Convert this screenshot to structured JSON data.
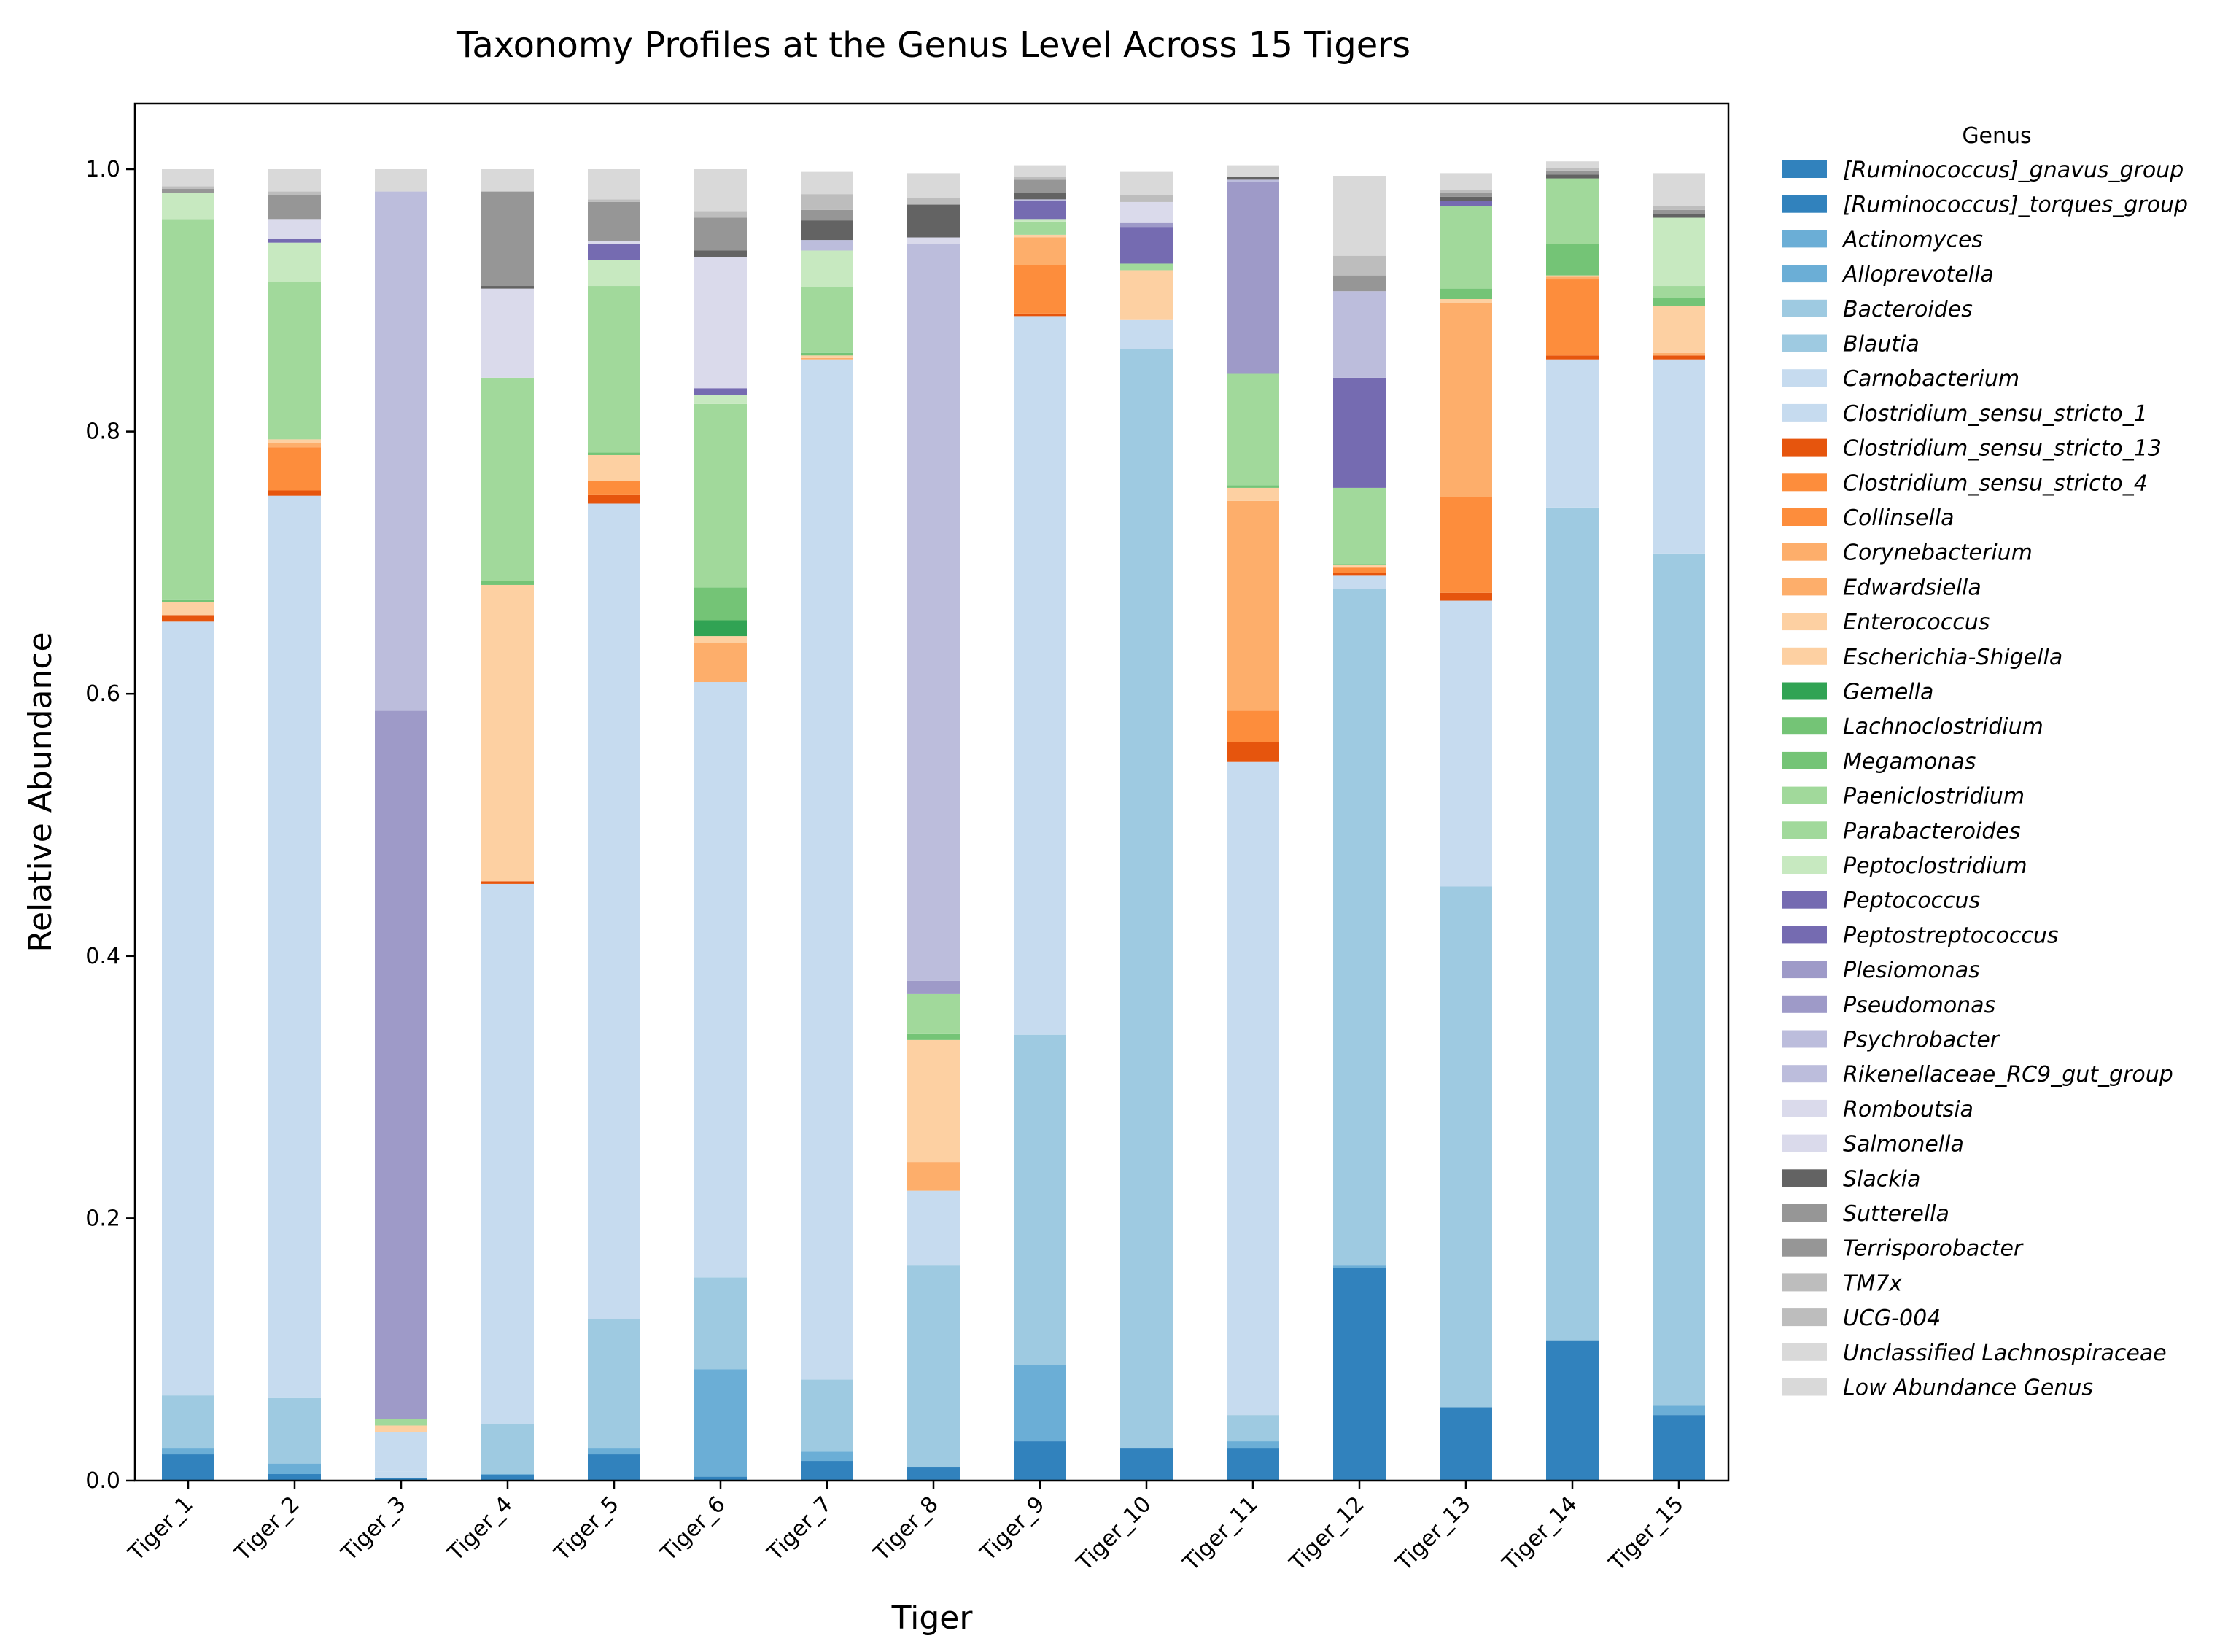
{
  "chart_data": {
    "type": "bar",
    "stacked": true,
    "title": "Taxonomy Profiles at the Genus Level Across 15 Tigers",
    "xlabel": "Tiger",
    "ylabel": "Relative Abundance",
    "ylim": [
      0,
      1.05
    ],
    "yticks": [
      0.0,
      0.2,
      0.4,
      0.6,
      0.8,
      1.0
    ],
    "ytick_labels": [
      "0.0",
      "0.2",
      "0.4",
      "0.6",
      "0.8",
      "1.0"
    ],
    "grid": false,
    "legend_title": "Genus",
    "legend_position": "outside-right",
    "categories": [
      "Tiger_1",
      "Tiger_2",
      "Tiger_3",
      "Tiger_4",
      "Tiger_5",
      "Tiger_6",
      "Tiger_7",
      "Tiger_8",
      "Tiger_9",
      "Tiger_10",
      "Tiger_11",
      "Tiger_12",
      "Tiger_13",
      "Tiger_14",
      "Tiger_15"
    ],
    "series": [
      {
        "name": "[Ruminococcus]_gnavus_group",
        "color": "#3182bd",
        "values": [
          0.02,
          0.005,
          0.002,
          0.004,
          0.02,
          0.003,
          0.015,
          0.01,
          0.03,
          0.025,
          0.025,
          0.162,
          0.056,
          0.107,
          0.05
        ]
      },
      {
        "name": "[Ruminococcus]_torques_group",
        "color": "#3182bd",
        "values": [
          0,
          0,
          0,
          0,
          0,
          0,
          0,
          0,
          0,
          0,
          0,
          0,
          0,
          0,
          0
        ]
      },
      {
        "name": "Actinomyces",
        "color": "#6baed6",
        "values": [
          0.005,
          0.008,
          0,
          0.001,
          0.005,
          0.082,
          0.007,
          0,
          0.058,
          0,
          0.005,
          0.002,
          0,
          0,
          0.007
        ]
      },
      {
        "name": "Alloprevotella",
        "color": "#6baed6",
        "values": [
          0,
          0,
          0,
          0,
          0,
          0,
          0,
          0,
          0,
          0,
          0,
          0,
          0,
          0,
          0
        ]
      },
      {
        "name": "Bacteroides",
        "color": "#9ecae1",
        "values": [
          0.04,
          0.05,
          0,
          0.038,
          0.098,
          0.07,
          0.055,
          0.154,
          0.252,
          0.838,
          0.02,
          0.516,
          0.397,
          0.635,
          0.65
        ]
      },
      {
        "name": "Blautia",
        "color": "#9ecae1",
        "values": [
          0,
          0,
          0,
          0,
          0,
          0,
          0,
          0,
          0,
          0,
          0,
          0,
          0,
          0,
          0
        ]
      },
      {
        "name": "Carnobacterium",
        "color": "#c6dbef",
        "values": [
          0,
          0,
          0.005,
          0,
          0,
          0,
          0,
          0,
          0,
          0,
          0,
          0,
          0,
          0,
          0
        ]
      },
      {
        "name": "Clostridium_sensu_stricto_1",
        "color": "#c6dbef",
        "values": [
          0.59,
          0.688,
          0.03,
          0.412,
          0.622,
          0.454,
          0.778,
          0.057,
          0.548,
          0.022,
          0.498,
          0.01,
          0.218,
          0.113,
          0.148
        ]
      },
      {
        "name": "Clostridium_sensu_stricto_13",
        "color": "#e6550d",
        "values": [
          0.005,
          0.004,
          0,
          0.002,
          0.007,
          0,
          0,
          0,
          0.002,
          0,
          0.015,
          0.002,
          0.006,
          0.003,
          0.003
        ]
      },
      {
        "name": "Clostridium_sensu_stricto_4",
        "color": "#fd8d3c",
        "values": [
          0,
          0,
          0,
          0,
          0,
          0,
          0,
          0,
          0,
          0,
          0,
          0,
          0,
          0,
          0
        ]
      },
      {
        "name": "Collinsella",
        "color": "#fd8d3c",
        "values": [
          0,
          0.033,
          0,
          0,
          0.01,
          0,
          0,
          0,
          0.037,
          0,
          0.024,
          0.004,
          0.073,
          0.058,
          0
        ]
      },
      {
        "name": "Corynebacterium",
        "color": "#fdae6b",
        "values": [
          0,
          0,
          0,
          0,
          0,
          0,
          0,
          0,
          0,
          0,
          0,
          0,
          0,
          0,
          0
        ]
      },
      {
        "name": "Edwardsiella",
        "color": "#fdae6b",
        "values": [
          0,
          0.003,
          0,
          0,
          0,
          0.03,
          0.001,
          0.022,
          0.021,
          0,
          0.16,
          0.001,
          0.148,
          0.002,
          0.002
        ]
      },
      {
        "name": "Enterococcus",
        "color": "#fdd0a2",
        "values": [
          0,
          0,
          0,
          0,
          0,
          0,
          0,
          0,
          0,
          0,
          0,
          0,
          0,
          0,
          0
        ]
      },
      {
        "name": "Escherichia-Shigella",
        "color": "#fdd0a2",
        "values": [
          0.01,
          0.003,
          0.005,
          0.226,
          0.02,
          0.005,
          0.002,
          0.093,
          0.002,
          0.038,
          0.01,
          0.001,
          0.003,
          0.001,
          0.036
        ]
      },
      {
        "name": "Gemella",
        "color": "#31a354",
        "values": [
          0,
          0,
          0,
          0,
          0,
          0.012,
          0,
          0,
          0,
          0,
          0,
          0,
          0,
          0,
          0
        ]
      },
      {
        "name": "Lachnoclostridium",
        "color": "#74c476",
        "values": [
          0,
          0,
          0,
          0,
          0,
          0,
          0,
          0,
          0,
          0,
          0,
          0,
          0,
          0,
          0
        ]
      },
      {
        "name": "Megamonas",
        "color": "#74c476",
        "values": [
          0.002,
          0,
          0,
          0.003,
          0.002,
          0.025,
          0.002,
          0.005,
          0,
          0,
          0.002,
          0.001,
          0.008,
          0.024,
          0.006
        ]
      },
      {
        "name": "Paeniclostridium",
        "color": "#a1d99b",
        "values": [
          0,
          0,
          0,
          0,
          0,
          0,
          0,
          0,
          0,
          0,
          0,
          0,
          0,
          0,
          0
        ]
      },
      {
        "name": "Parabacteroides",
        "color": "#a1d99b",
        "values": [
          0.29,
          0.12,
          0.005,
          0.155,
          0.127,
          0.14,
          0.05,
          0.03,
          0.01,
          0.005,
          0.085,
          0.058,
          0.063,
          0.05,
          0.009
        ]
      },
      {
        "name": "Peptoclostridium",
        "color": "#c7e9c0",
        "values": [
          0.02,
          0.03,
          0,
          0,
          0.02,
          0.007,
          0.028,
          0,
          0.002,
          0,
          0,
          0,
          0,
          0,
          0.052
        ]
      },
      {
        "name": "Peptococcus",
        "color": "#756bb1",
        "values": [
          0,
          0,
          0,
          0,
          0,
          0,
          0,
          0,
          0,
          0,
          0,
          0,
          0,
          0,
          0
        ]
      },
      {
        "name": "Peptostreptococcus",
        "color": "#756bb1",
        "values": [
          0,
          0.003,
          0,
          0,
          0.012,
          0.005,
          0,
          0,
          0.014,
          0.028,
          0,
          0.084,
          0.004,
          0,
          0
        ]
      },
      {
        "name": "Plesiomonas",
        "color": "#9e9ac8",
        "values": [
          0,
          0,
          0.54,
          0,
          0,
          0,
          0,
          0.01,
          0,
          0.003,
          0.146,
          0,
          0,
          0,
          0
        ]
      },
      {
        "name": "Pseudomonas",
        "color": "#9e9ac8",
        "values": [
          0,
          0,
          0,
          0,
          0,
          0,
          0,
          0,
          0,
          0,
          0,
          0,
          0,
          0,
          0
        ]
      },
      {
        "name": "Psychrobacter",
        "color": "#bcbddc",
        "values": [
          0,
          0,
          0.396,
          0,
          0,
          0,
          0.008,
          0.562,
          0.001,
          0,
          0.002,
          0.066,
          0,
          0,
          0
        ]
      },
      {
        "name": "Rikenellaceae_RC9_gut_group",
        "color": "#bcbddc",
        "values": [
          0,
          0,
          0,
          0,
          0,
          0,
          0,
          0,
          0,
          0,
          0,
          0,
          0,
          0,
          0
        ]
      },
      {
        "name": "Romboutsia",
        "color": "#dadaeb",
        "values": [
          0,
          0.015,
          0,
          0.068,
          0.002,
          0.1,
          0,
          0.005,
          0,
          0.016,
          0,
          0,
          0,
          0,
          0
        ]
      },
      {
        "name": "Salmonella",
        "color": "#dadaeb",
        "values": [
          0,
          0,
          0,
          0,
          0,
          0,
          0,
          0,
          0,
          0,
          0,
          0,
          0,
          0,
          0
        ]
      },
      {
        "name": "Slackia",
        "color": "#636363",
        "values": [
          0,
          0,
          0,
          0.002,
          0,
          0.005,
          0.015,
          0.025,
          0.005,
          0,
          0.002,
          0,
          0.003,
          0.003,
          0.003
        ]
      },
      {
        "name": "Sutterella",
        "color": "#969696",
        "values": [
          0,
          0,
          0,
          0,
          0,
          0,
          0,
          0,
          0,
          0,
          0,
          0,
          0,
          0,
          0
        ]
      },
      {
        "name": "Terrisporobacter",
        "color": "#969696",
        "values": [
          0.003,
          0.018,
          0,
          0.072,
          0.03,
          0.025,
          0.008,
          0,
          0.01,
          0,
          0,
          0.012,
          0.003,
          0.003,
          0.003
        ]
      },
      {
        "name": "TM7x",
        "color": "#bdbdbd",
        "values": [
          0,
          0,
          0,
          0,
          0,
          0,
          0,
          0,
          0,
          0,
          0,
          0,
          0,
          0,
          0
        ]
      },
      {
        "name": "UCG-004",
        "color": "#bdbdbd",
        "values": [
          0.002,
          0.003,
          0,
          0,
          0.002,
          0.005,
          0.012,
          0.005,
          0.002,
          0.005,
          0,
          0.015,
          0.002,
          0.002,
          0.003
        ]
      },
      {
        "name": "Unclassified Lachnospiraceae",
        "color": "#d9d9d9",
        "values": [
          0,
          0,
          0,
          0,
          0,
          0,
          0,
          0,
          0,
          0,
          0,
          0,
          0,
          0,
          0
        ]
      },
      {
        "name": "Low Abundance Genus",
        "color": "#d9d9d9",
        "values": [
          0.013,
          0.017,
          0.017,
          0.017,
          0.023,
          0.032,
          0.017,
          0.019,
          0.009,
          0.018,
          0.009,
          0.061,
          0.013,
          0.005,
          0.025
        ]
      }
    ]
  }
}
